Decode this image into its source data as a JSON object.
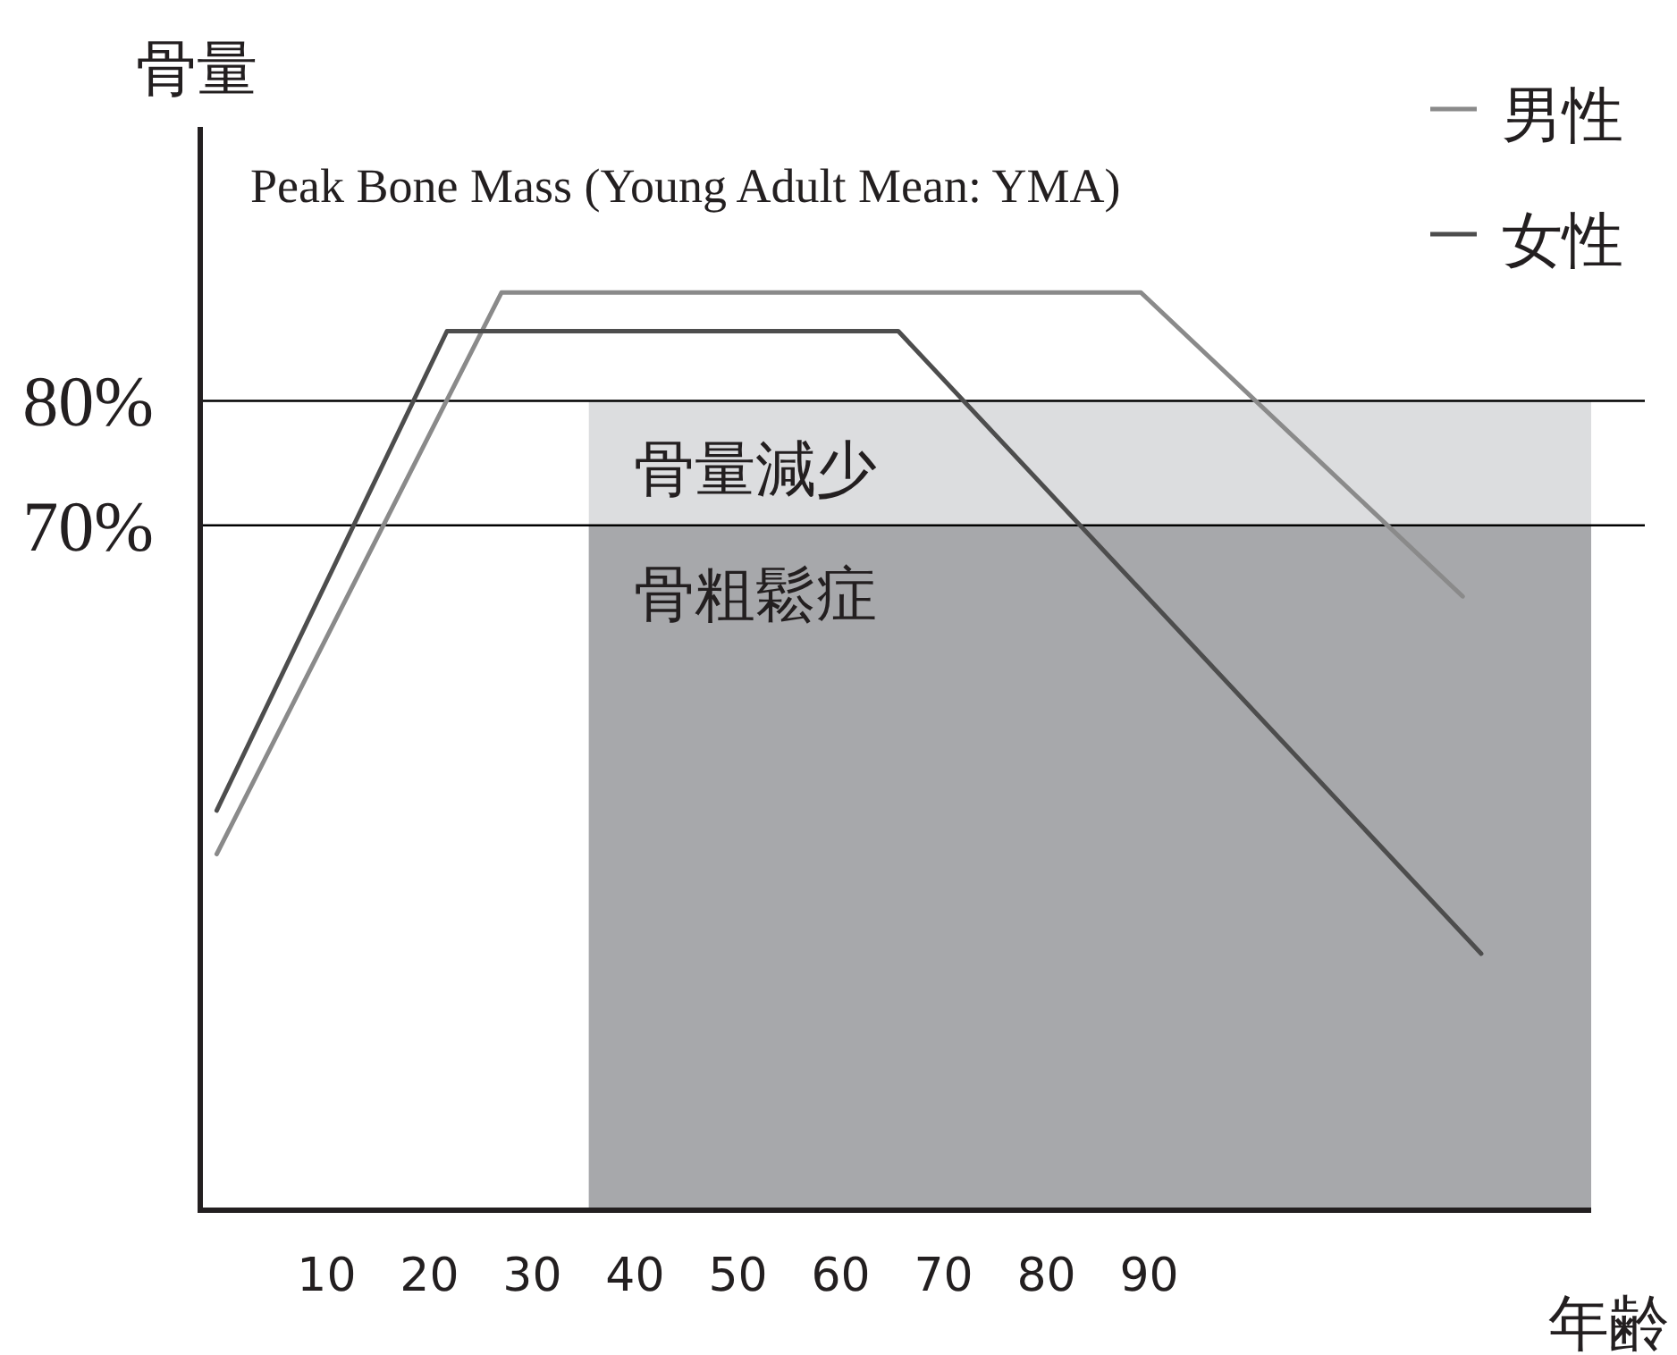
{
  "chart_data": {
    "type": "line",
    "xlabel": "年齢",
    "ylabel": "骨量",
    "annotations": [
      "Peak Bone Mass (Young Adult Mean: YMA)",
      "骨量減少",
      "骨粗鬆症"
    ],
    "xlim": [
      -2.3,
      133
    ],
    "ylim": [
      15,
      102
    ],
    "xticks": [
      10,
      20,
      30,
      40,
      50,
      60,
      70,
      80,
      90
    ],
    "yticks": [
      {
        "value": 80,
        "label": "80%"
      },
      {
        "value": 70,
        "label": "70%"
      }
    ],
    "legend": "top right",
    "series": [
      {
        "type": "area",
        "color": "#dcdddf",
        "x": [
          35.5,
          133
        ],
        "values": [
          80,
          80
        ]
      },
      {
        "type": "area",
        "color": "#a7a8ab",
        "x": [
          35.5,
          133
        ],
        "values": [
          70,
          70
        ]
      },
      {
        "name": "男性",
        "color": "#8a8a8a",
        "x": [
          -0.7,
          27,
          89.2,
          120.5
        ],
        "values": [
          43.6,
          88.7,
          88.7,
          64.3
        ]
      },
      {
        "name": "女性",
        "color": "#4d4d4d",
        "x": [
          -0.7,
          21.7,
          65.6,
          122.3
        ],
        "values": [
          47.1,
          85.6,
          85.6,
          35.6
        ]
      }
    ],
    "ref_lines": [
      {
        "axis": "y",
        "value": 80
      },
      {
        "axis": "y",
        "value": 70
      }
    ]
  }
}
